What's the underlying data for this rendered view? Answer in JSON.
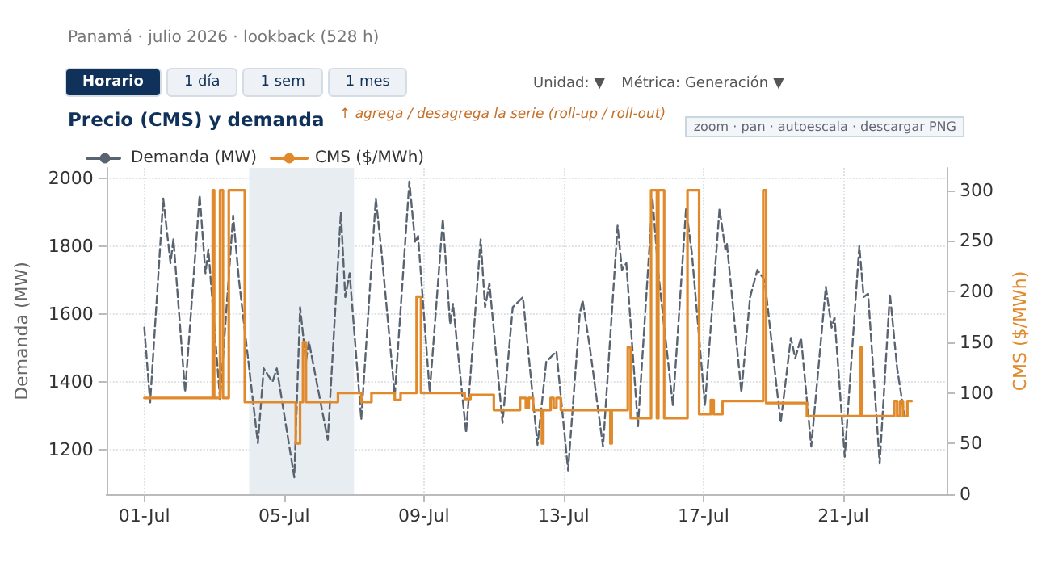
{
  "chart_data": {
    "type": "line",
    "title": "Precio (CMS) y demanda",
    "subtitle": "Panamá · julio 2026 · lookback (528 h)",
    "annotations": [
      "Horario",
      "1 día",
      "1 sem",
      "1 mes",
      "Unidad: ▼",
      "Métrica: Generación ▼",
      "↑ agrega / desagrega la serie (roll-up / roll-out)",
      "zoom · pan · autoescala · descargar PNG"
    ],
    "ylabel": "Demanda (MW)",
    "y2label": "CMS ($/MWh)",
    "xlim": [
      "2026-06-29T22:00",
      "2026-07-23T23:00"
    ],
    "xticks": [
      {
        "value": "2026-07-01T00:00",
        "label": "01-Jul"
      },
      {
        "value": "2026-07-05T00:00",
        "label": "05-Jul"
      },
      {
        "value": "2026-07-09T00:00",
        "label": "09-Jul"
      },
      {
        "value": "2026-07-13T00:00",
        "label": "13-Jul"
      },
      {
        "value": "2026-07-17T00:00",
        "label": "17-Jul"
      },
      {
        "value": "2026-07-21T00:00",
        "label": "21-Jul"
      }
    ],
    "ylim": [
      1070,
      2030
    ],
    "yticks": [
      1200,
      1400,
      1600,
      1800,
      2000
    ],
    "y2lim": [
      0,
      322
    ],
    "y2ticks": [
      0,
      50,
      100,
      150,
      200,
      250,
      300
    ],
    "grid": true,
    "legend": "top left",
    "marker": "none",
    "bands": [
      {
        "axis": "x",
        "from": "2026-07-04T00:00",
        "to": "2026-07-07T00:00",
        "color": "#e8edf1"
      }
    ],
    "series": [
      {
        "name": "Demanda (MW)",
        "line_style": "dashed",
        "color": "#5a6370",
        "x": [
          "2026-07-01T00:00",
          "2026-07-01T04:00",
          "2026-07-01T13:00",
          "2026-07-01T18:00",
          "2026-07-01T20:00",
          "2026-07-02T04:00",
          "2026-07-02T14:00",
          "2026-07-02T18:00",
          "2026-07-02T20:00",
          "2026-07-03T04:00",
          "2026-07-03T13:00",
          "2026-07-03T17:00",
          "2026-07-04T06:00",
          "2026-07-04T10:00",
          "2026-07-04T16:00",
          "2026-07-04T19:00",
          "2026-07-05T07:00",
          "2026-07-05T11:00",
          "2026-07-05T15:00",
          "2026-07-05T17:00",
          "2026-07-06T06:00",
          "2026-07-06T15:00",
          "2026-07-06T18:00",
          "2026-07-06T21:00",
          "2026-07-07T05:00",
          "2026-07-07T15:00",
          "2026-07-07T19:00",
          "2026-07-08T04:00",
          "2026-07-08T14:00",
          "2026-07-08T18:00",
          "2026-07-08T20:00",
          "2026-07-09T04:00",
          "2026-07-09T13:00",
          "2026-07-09T18:00",
          "2026-07-09T20:00",
          "2026-07-10T05:00",
          "2026-07-10T15:00",
          "2026-07-10T18:00",
          "2026-07-10T21:00",
          "2026-07-11T06:00",
          "2026-07-11T13:00",
          "2026-07-11T20:00",
          "2026-07-12T06:00",
          "2026-07-12T12:00",
          "2026-07-12T19:00",
          "2026-07-13T03:00",
          "2026-07-13T11:00",
          "2026-07-13T13:00",
          "2026-07-13T18:00",
          "2026-07-14T03:00",
          "2026-07-14T13:00",
          "2026-07-14T16:00",
          "2026-07-14T19:00",
          "2026-07-15T03:00",
          "2026-07-15T13:00",
          "2026-07-15T17:00",
          "2026-07-16T03:00",
          "2026-07-16T12:00",
          "2026-07-16T16:00",
          "2026-07-17T01:00",
          "2026-07-17T11:00",
          "2026-07-17T15:00",
          "2026-07-17T16:00",
          "2026-07-18T02:00",
          "2026-07-18T08:00",
          "2026-07-18T13:00",
          "2026-07-18T18:00",
          "2026-07-19T05:00",
          "2026-07-19T12:00",
          "2026-07-19T15:00",
          "2026-07-19T19:00",
          "2026-07-20T02:00",
          "2026-07-20T12:00",
          "2026-07-20T16:00",
          "2026-07-20T18:00",
          "2026-07-21T01:00",
          "2026-07-21T11:00",
          "2026-07-21T14:00",
          "2026-07-21T17:00",
          "2026-07-22T01:00",
          "2026-07-22T08:00",
          "2026-07-22T13:00",
          "2026-07-22T18:00"
        ],
        "values": [
          1560,
          1340,
          1940,
          1750,
          1820,
          1370,
          1950,
          1720,
          1790,
          1350,
          1890,
          1700,
          1220,
          1440,
          1400,
          1440,
          1120,
          1620,
          1460,
          1520,
          1230,
          1900,
          1650,
          1720,
          1290,
          1940,
          1780,
          1360,
          1990,
          1810,
          1830,
          1370,
          1880,
          1570,
          1630,
          1250,
          1820,
          1620,
          1690,
          1280,
          1620,
          1650,
          1215,
          1460,
          1490,
          1140,
          1600,
          1640,
          1500,
          1210,
          1860,
          1730,
          1750,
          1270,
          1940,
          1720,
          1330,
          1910,
          1780,
          1330,
          1910,
          1790,
          1810,
          1370,
          1650,
          1730,
          1700,
          1280,
          1530,
          1470,
          1530,
          1210,
          1680,
          1560,
          1590,
          1180,
          1800,
          1650,
          1660,
          1160,
          1660,
          1440,
          1300
        ]
      },
      {
        "name": "CMS ($/MWh)",
        "type": "step",
        "axis": "y2",
        "line_style": "solid",
        "color": "#e08a2c",
        "x": [
          "2026-07-01T00:00",
          "2026-07-02T23:00",
          "2026-07-03T00:00",
          "2026-07-03T04:00",
          "2026-07-03T06:00",
          "2026-07-03T10:00",
          "2026-07-03T21:00",
          "2026-07-05T08:00",
          "2026-07-05T11:00",
          "2026-07-05T13:00",
          "2026-07-05T15:00",
          "2026-07-06T13:00",
          "2026-07-07T05:00",
          "2026-07-07T12:00",
          "2026-07-08T04:00",
          "2026-07-08T08:00",
          "2026-07-08T19:00",
          "2026-07-08T22:00",
          "2026-07-10T04:00",
          "2026-07-10T08:00",
          "2026-07-11T00:00",
          "2026-07-11T18:00",
          "2026-07-11T22:00",
          "2026-07-12T00:00",
          "2026-07-12T03:00",
          "2026-07-12T09:00",
          "2026-07-12T10:00",
          "2026-07-12T15:00",
          "2026-07-12T17:00",
          "2026-07-12T19:00",
          "2026-07-12T22:00",
          "2026-07-14T08:00",
          "2026-07-14T09:00",
          "2026-07-14T20:00",
          "2026-07-14T22:00",
          "2026-07-15T12:00",
          "2026-07-15T16:00",
          "2026-07-15T17:00",
          "2026-07-15T21:00",
          "2026-07-16T13:00",
          "2026-07-16T21:00",
          "2026-07-17T05:00",
          "2026-07-17T07:00",
          "2026-07-17T13:00",
          "2026-07-18T17:00",
          "2026-07-18T19:00",
          "2026-07-19T23:00",
          "2026-07-21T12:00",
          "2026-07-21T13:00",
          "2026-07-22T11:00",
          "2026-07-22T13:00",
          "2026-07-22T15:00",
          "2026-07-22T17:00",
          "2026-07-22T20:00",
          "2026-07-22T23:00"
        ],
        "values": [
          95,
          300,
          95,
          300,
          95,
          300,
          91,
          50,
          91,
          150,
          91,
          100,
          91,
          100,
          93,
          100,
          195,
          100,
          94,
          98,
          83,
          95,
          85,
          95,
          83,
          50,
          83,
          95,
          85,
          95,
          83,
          50,
          83,
          145,
          75,
          300,
          75,
          300,
          75,
          300,
          79,
          93,
          79,
          92,
          300,
          90,
          77,
          145,
          77,
          92,
          77,
          92,
          77,
          92,
          92
        ]
      }
    ]
  }
}
